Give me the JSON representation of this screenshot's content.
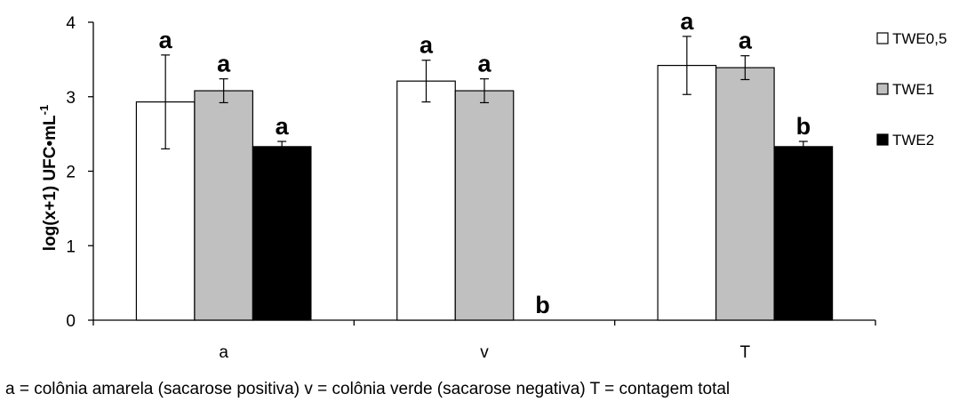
{
  "chart_data": {
    "type": "bar",
    "categories": [
      "a",
      "v",
      "T"
    ],
    "ylabel": "log(x+1) UFC•mL",
    "ylabel_sup": "-1",
    "ylim": [
      0,
      4
    ],
    "yticks": [
      "0",
      "1",
      "2",
      "3",
      "4"
    ],
    "grid": false,
    "legend_position": "right",
    "series": [
      {
        "name": "TWE0,5",
        "color": "#ffffff",
        "values": [
          2.93,
          3.21,
          3.42
        ],
        "errors": [
          0.63,
          0.28,
          0.39
        ],
        "labels": [
          "a",
          "a",
          "a"
        ]
      },
      {
        "name": "TWE1",
        "color": "#c0c0c0",
        "values": [
          3.08,
          3.08,
          3.39
        ],
        "errors": [
          0.16,
          0.16,
          0.16
        ],
        "labels": [
          "a",
          "a",
          "a"
        ]
      },
      {
        "name": "TWE2",
        "color": "#000000",
        "values": [
          2.33,
          0.0,
          2.33
        ],
        "errors": [
          0.07,
          0.0,
          0.07
        ],
        "labels": [
          "a",
          "b",
          "b"
        ]
      }
    ]
  },
  "footnote": "a = colônia amarela (sacarose positiva)   v = colônia verde (sacarose negativa)    T = contagem total"
}
